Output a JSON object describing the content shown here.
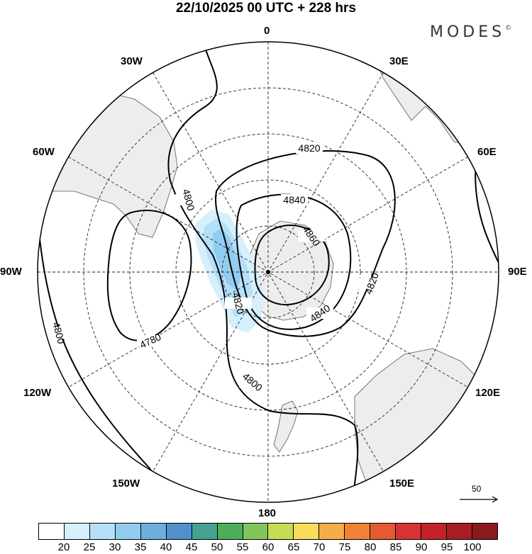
{
  "title": "22/10/2025  00 UTC  + 228 hrs",
  "brand": "MODES",
  "brand_mark": "©",
  "longitude_labels": {
    "top": "0",
    "bottom": "180",
    "left": "90W",
    "right": "90E",
    "upper_left_1": "30W",
    "upper_left_2": "60W",
    "upper_right_1": "30E",
    "upper_right_2": "60E",
    "lower_left_1": "120W",
    "lower_left_2": "150W",
    "lower_right_1": "120E",
    "lower_right_2": "150E"
  },
  "contour_labels": [
    "4820",
    "4840",
    "4860",
    "4820",
    "4840",
    "4820",
    "4800",
    "4800",
    "4800",
    "4780"
  ],
  "vector_reference": "50",
  "colorbar": {
    "labels": [
      "20",
      "25",
      "30",
      "35",
      "40",
      "45",
      "50",
      "55",
      "60",
      "65",
      "70",
      "75",
      "80",
      "85",
      "90",
      "95",
      "100"
    ],
    "colors": [
      "#ffffff",
      "#d6effd",
      "#b4e0f8",
      "#92cdf0",
      "#6eaedf",
      "#4f91cc",
      "#45a192",
      "#4cae5a",
      "#82c55a",
      "#c7dc55",
      "#f8dc5a",
      "#f5ad4a",
      "#ee8236",
      "#e55a30",
      "#d83232",
      "#c32328",
      "#a61e22",
      "#8a1a1c"
    ]
  }
}
